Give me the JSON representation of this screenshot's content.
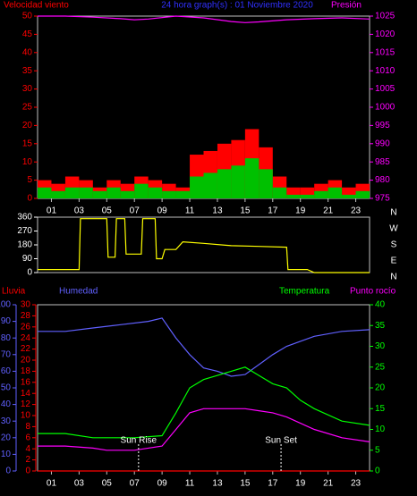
{
  "chart_data": [
    {
      "type": "bar",
      "title": "24 hora graph(s) : 01 Noviembre 2020",
      "ylabel": "Velocidad viento",
      "y2label": "Presión",
      "xlim": [
        0,
        24
      ],
      "xticks": [
        {
          "value": 1,
          "label": "01"
        },
        {
          "value": 3,
          "label": "03"
        },
        {
          "value": 5,
          "label": "05"
        },
        {
          "value": 7,
          "label": "07"
        },
        {
          "value": 9,
          "label": "09"
        },
        11,
        13,
        15,
        17,
        19,
        21,
        23
      ],
      "ylim": [
        0,
        50
      ],
      "yticks": [
        0,
        5,
        10,
        15,
        20,
        25,
        30,
        35,
        40,
        45,
        50
      ],
      "y2lim": [
        975,
        1025
      ],
      "y2ticks": [
        975,
        980,
        985,
        990,
        995,
        1000,
        1005,
        1010,
        1015,
        1020,
        1025
      ],
      "x": [
        0,
        1,
        2,
        3,
        4,
        5,
        6,
        7,
        8,
        9,
        10,
        11,
        12,
        13,
        14,
        15,
        16,
        17,
        18,
        19,
        20,
        21,
        22,
        23
      ],
      "series": [
        {
          "color": "#ff0000",
          "values": [
            5,
            4,
            6,
            5,
            3,
            5,
            4,
            6,
            5,
            4,
            3,
            12,
            13,
            15,
            16,
            19,
            14,
            6,
            3,
            3,
            4,
            5,
            3,
            4
          ]
        },
        {
          "color": "#00c000",
          "values": [
            3,
            2,
            3,
            3,
            2,
            3,
            2,
            4,
            3,
            2,
            2,
            6,
            7,
            8,
            9,
            11,
            8,
            3,
            1,
            1,
            2,
            3,
            1,
            2
          ]
        },
        {
          "color": "#ff00ff",
          "axis": "y2",
          "x": [
            0,
            2,
            4,
            6,
            7,
            8,
            10,
            12,
            14,
            15,
            16,
            18,
            20,
            22,
            24
          ],
          "values": [
            1025,
            1025,
            1024.7,
            1024.3,
            1024,
            1024.2,
            1025,
            1024.5,
            1023.5,
            1023.2,
            1023.4,
            1024,
            1024.3,
            1024.5,
            1024.2
          ]
        }
      ]
    },
    {
      "type": "line",
      "ylim": [
        0,
        360
      ],
      "yticks": [
        0,
        90,
        180,
        270,
        360
      ],
      "xlim": [
        0,
        24
      ],
      "compass": [
        "N",
        "W",
        "S",
        "E",
        "N"
      ],
      "series": [
        {
          "color": "#ffff00",
          "x": [
            0,
            3,
            3.1,
            5,
            5.1,
            5.6,
            5.7,
            6.3,
            6.4,
            7.5,
            7.6,
            8.5,
            8.6,
            9,
            9.2,
            10,
            10.5,
            12,
            14,
            16,
            18,
            18.1,
            19.5,
            20,
            24
          ],
          "values": [
            20,
            20,
            350,
            350,
            100,
            100,
            350,
            350,
            120,
            120,
            350,
            350,
            90,
            90,
            150,
            150,
            200,
            190,
            175,
            170,
            165,
            20,
            20,
            0,
            0
          ]
        }
      ]
    },
    {
      "type": "line",
      "xlim": [
        0,
        24
      ],
      "xticks": [
        {
          "value": 1,
          "label": "01"
        },
        {
          "value": 3,
          "label": "03"
        },
        {
          "value": 5,
          "label": "05"
        },
        {
          "value": 7,
          "label": "07"
        },
        {
          "value": 9,
          "label": "09"
        },
        11,
        13,
        15,
        17,
        19,
        21,
        23
      ],
      "labels": {
        "rain": "Lluvia",
        "hum": "Humedad",
        "temp": "Temperatura",
        "dew": "Punto rocío"
      },
      "ylim": [
        0,
        30
      ],
      "yticks": [
        0,
        2,
        4,
        6,
        8,
        10,
        12,
        14,
        16,
        18,
        20,
        22,
        24,
        26,
        28,
        30
      ],
      "y3lim": [
        0,
        100
      ],
      "y3ticks": [
        0,
        10,
        20,
        30,
        40,
        50,
        60,
        70,
        80,
        90,
        100
      ],
      "y2lim": [
        0,
        40
      ],
      "y2ticks": [
        0,
        5,
        10,
        15,
        20,
        25,
        30,
        35,
        40
      ],
      "annotations": [
        {
          "text": "Sun Rise",
          "x": 7.3
        },
        {
          "text": "Sun Set",
          "x": 17.6
        }
      ],
      "series": [
        {
          "color": "#ff0000",
          "axis": "y",
          "x": [
            0,
            24
          ],
          "values": [
            0,
            0
          ]
        },
        {
          "color": "#6060ff",
          "axis": "y3",
          "x": [
            0,
            2,
            4,
            6,
            8,
            9,
            10,
            11,
            12,
            13,
            14,
            15,
            16,
            17,
            18,
            20,
            22,
            24
          ],
          "values": [
            84,
            84,
            86,
            88,
            90,
            92,
            80,
            70,
            62,
            60,
            57,
            58,
            64,
            70,
            75,
            81,
            84,
            85
          ]
        },
        {
          "color": "#00ff00",
          "axis": "y2",
          "x": [
            0,
            2,
            4,
            5,
            7,
            9,
            10,
            11,
            12,
            13,
            14,
            15,
            16,
            17,
            18,
            19,
            20,
            22,
            24
          ],
          "values": [
            9,
            9,
            8,
            8,
            8,
            8.5,
            14,
            20,
            22,
            23,
            24,
            25,
            23,
            21,
            20,
            17,
            15,
            12,
            11
          ]
        },
        {
          "color": "#ff00ff",
          "axis": "y2",
          "x": [
            0,
            2,
            4,
            5,
            7,
            9,
            10,
            11,
            12,
            13,
            14,
            15,
            16,
            17,
            18,
            20,
            22,
            24
          ],
          "values": [
            6,
            6,
            5.5,
            5,
            5,
            6,
            10,
            14,
            15,
            15,
            15,
            15,
            14.5,
            14,
            13,
            10,
            8,
            7
          ]
        }
      ]
    }
  ]
}
